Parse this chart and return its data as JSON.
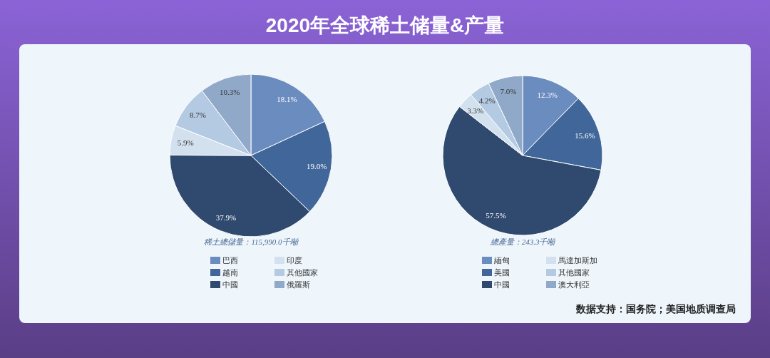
{
  "chart_data": [
    {
      "type": "pie",
      "title": "2020年全球稀土储量&产量",
      "subtitle": "稀土總儲量：115,990.0千噸",
      "categories": [
        "巴西",
        "越南",
        "中國",
        "印度",
        "其他國家",
        "俄羅斯"
      ],
      "values": [
        18.1,
        19.0,
        37.9,
        5.9,
        8.7,
        10.3
      ],
      "colors": [
        "#6a8cbf",
        "#41669a",
        "#2f4a6e",
        "#d3e1ef",
        "#b4c9e2",
        "#90a9c9"
      ],
      "value_labels": [
        "18.1%",
        "19.0%",
        "37.9%",
        "5.9%",
        "8.7%",
        "10.3%"
      ],
      "legend": "bottom"
    },
    {
      "type": "pie",
      "subtitle": "總產量：243.3千噸",
      "categories": [
        "緬甸",
        "美國",
        "中國",
        "馬達加斯加",
        "其他國家",
        "澳大利亞"
      ],
      "values": [
        12.3,
        15.6,
        57.5,
        3.3,
        4.2,
        7.0
      ],
      "colors": [
        "#6a8cbf",
        "#41669a",
        "#2f4a6e",
        "#d3e1ef",
        "#b4c9e2",
        "#90a9c9"
      ],
      "value_labels": [
        "12.3%",
        "15.6%",
        "57.5%",
        "3.3%",
        "4.2%",
        "7.0%"
      ],
      "legend": "bottom",
      "annotations": [
        "数据支持：国务院；美国地质调查局"
      ]
    }
  ]
}
